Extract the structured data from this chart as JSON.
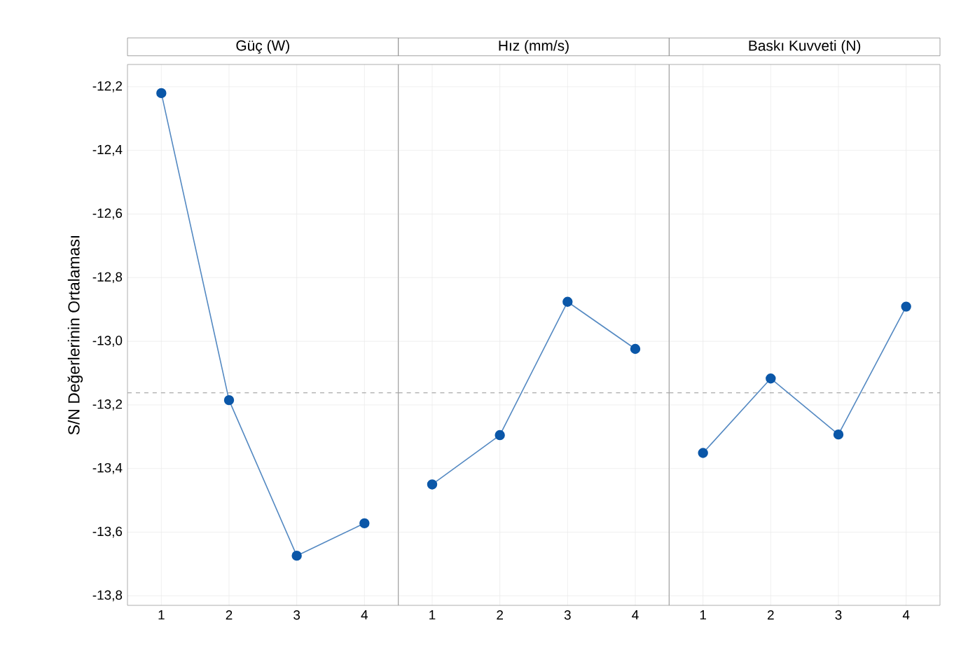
{
  "chart_data": [
    {
      "type": "line",
      "title": "Güç (W)",
      "ylabel": "S/N Değerlerinin Ortalaması",
      "categories": [
        "1",
        "2",
        "3",
        "4"
      ],
      "series": [
        {
          "color": "#0b57a8",
          "values": [
            -12.22,
            -13.185,
            -13.674,
            -13.572
          ]
        }
      ],
      "ylim": [
        -13.83,
        -12.13
      ],
      "yticks": [
        {
          "value": -13.8,
          "label": "-13,8"
        },
        {
          "value": -13.6,
          "label": "-13,6"
        },
        {
          "value": -13.4,
          "label": "-13,4"
        },
        {
          "value": -13.2,
          "label": "-13,2"
        },
        {
          "value": -13.0,
          "label": "-13,0"
        },
        {
          "value": -12.8,
          "label": "-12,8"
        },
        {
          "value": -12.6,
          "label": "-12,6"
        },
        {
          "value": -12.4,
          "label": "-12,4"
        },
        {
          "value": -12.2,
          "label": "-12,2"
        }
      ],
      "ref_lines": [
        {
          "axis": "y",
          "value": -13.162,
          "color": "#aaaaaa",
          "line_style": "dashed"
        }
      ],
      "grid": true,
      "marker": "circle",
      "line_style": "solid"
    },
    {
      "type": "line",
      "title": "Hız (mm/s)",
      "categories": [
        "1",
        "2",
        "3",
        "4"
      ],
      "series": [
        {
          "color": "#0b57a8",
          "values": [
            -13.45,
            -13.295,
            -12.876,
            -13.024
          ]
        }
      ],
      "ylim": [
        -13.83,
        -12.13
      ],
      "yticks": [
        {
          "value": -13.8,
          "label": null
        },
        {
          "value": -13.6,
          "label": null
        },
        {
          "value": -13.4,
          "label": null
        },
        {
          "value": -13.2,
          "label": null
        },
        {
          "value": -13.0,
          "label": null
        },
        {
          "value": -12.8,
          "label": null
        },
        {
          "value": -12.6,
          "label": null
        },
        {
          "value": -12.4,
          "label": null
        },
        {
          "value": -12.2,
          "label": null
        }
      ],
      "ref_lines": [
        {
          "axis": "y",
          "value": -13.162,
          "color": "#aaaaaa",
          "line_style": "dashed"
        }
      ],
      "grid": true,
      "marker": "circle",
      "line_style": "solid",
      "tick_labels": "x"
    },
    {
      "type": "line",
      "title": "Baskı Kuvveti (N)",
      "categories": [
        "1",
        "2",
        "3",
        "4"
      ],
      "series": [
        {
          "color": "#0b57a8",
          "values": [
            -13.351,
            -13.117,
            -13.293,
            -12.891
          ]
        }
      ],
      "ylim": [
        -13.83,
        -12.13
      ],
      "yticks": [
        {
          "value": -13.8,
          "label": null
        },
        {
          "value": -13.6,
          "label": null
        },
        {
          "value": -13.4,
          "label": null
        },
        {
          "value": -13.2,
          "label": null
        },
        {
          "value": -13.0,
          "label": null
        },
        {
          "value": -12.8,
          "label": null
        },
        {
          "value": -12.6,
          "label": null
        },
        {
          "value": -12.4,
          "label": null
        },
        {
          "value": -12.2,
          "label": null
        }
      ],
      "ref_lines": [
        {
          "axis": "y",
          "value": -13.162,
          "color": "#aaaaaa",
          "line_style": "dashed"
        }
      ],
      "grid": true,
      "marker": "circle",
      "line_style": "solid",
      "tick_labels": "x"
    }
  ]
}
